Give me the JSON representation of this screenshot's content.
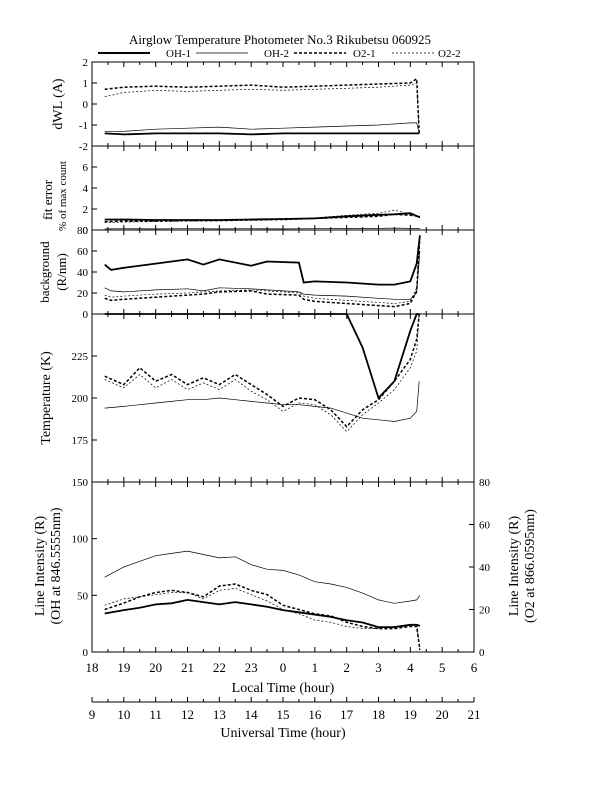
{
  "title": "Airglow Temperature Photometer No.3  Rikubetsu  060925",
  "legend": [
    {
      "label": "OH-1",
      "style": "thick"
    },
    {
      "label": "OH-2",
      "style": "thin"
    },
    {
      "label": "O2-1",
      "style": "thickdash"
    },
    {
      "label": "O2-2",
      "style": "thindash"
    }
  ],
  "x_axis_local": {
    "label": "Local Time (hour)",
    "ticks": [
      "18",
      "19",
      "20",
      "21",
      "22",
      "23",
      "0",
      "1",
      "2",
      "3",
      "4",
      "5",
      "6"
    ]
  },
  "x_axis_ut": {
    "label": "Universal Time (hour)",
    "ticks": [
      "9",
      "10",
      "11",
      "12",
      "13",
      "14",
      "15",
      "16",
      "17",
      "18",
      "19",
      "20",
      "21"
    ]
  },
  "chart_data": [
    {
      "type": "line",
      "panel": "dwl",
      "ylabel": "dWL (A)",
      "ylim": [
        -2,
        2
      ],
      "yticks": [
        "-2",
        "-1",
        "0",
        "1",
        "2"
      ],
      "x_ut": [
        9.4,
        10,
        11,
        12,
        13,
        14,
        15,
        16,
        17,
        18,
        19,
        19.2,
        19.28
      ],
      "series": [
        {
          "name": "OH-1",
          "values": [
            -1.4,
            -1.45,
            -1.4,
            -1.4,
            -1.4,
            -1.45,
            -1.4,
            -1.4,
            -1.4,
            -1.4,
            -1.4,
            -1.4,
            -1.4
          ]
        },
        {
          "name": "OH-2",
          "values": [
            -1.3,
            -1.3,
            -1.2,
            -1.15,
            -1.1,
            -1.2,
            -1.15,
            -1.1,
            -1.05,
            -1.0,
            -0.9,
            -0.9,
            -1.4
          ]
        },
        {
          "name": "O2-1",
          "values": [
            0.7,
            0.8,
            0.85,
            0.8,
            0.85,
            0.9,
            0.8,
            0.85,
            0.9,
            0.95,
            1.0,
            1.2,
            -1.4
          ]
        },
        {
          "name": "O2-2",
          "values": [
            0.35,
            0.55,
            0.65,
            0.6,
            0.65,
            0.7,
            0.65,
            0.7,
            0.75,
            0.8,
            0.9,
            1.0,
            -1.4
          ]
        }
      ]
    },
    {
      "type": "line",
      "panel": "fit",
      "ylabel": "fit error",
      "ylabel2": "% of max count",
      "ylim": [
        0,
        8
      ],
      "yticks": [
        "0",
        "2",
        "4",
        "6"
      ],
      "x_ut": [
        9.4,
        10,
        11,
        12,
        13,
        14,
        15,
        16,
        17,
        18,
        18.5,
        19,
        19.3
      ],
      "series": [
        {
          "name": "OH-1",
          "values": [
            1.0,
            1.0,
            0.95,
            0.95,
            0.95,
            1.0,
            1.05,
            1.1,
            1.3,
            1.45,
            1.5,
            1.6,
            1.2
          ]
        },
        {
          "name": "OH-2",
          "values": [
            0.1,
            0.12,
            0.1,
            0.12,
            0.1,
            0.12,
            0.1,
            0.12,
            0.15,
            0.15,
            0.18,
            0.15,
            0.15
          ]
        },
        {
          "name": "O2-1",
          "values": [
            0.8,
            0.85,
            0.85,
            0.9,
            0.9,
            0.95,
            1.0,
            1.1,
            1.2,
            1.3,
            1.5,
            1.4,
            1.3
          ]
        },
        {
          "name": "O2-2",
          "values": [
            0.7,
            0.75,
            0.8,
            0.85,
            0.9,
            0.95,
            1.0,
            1.15,
            1.4,
            1.6,
            1.9,
            1.5,
            1.3
          ]
        }
      ]
    },
    {
      "type": "line",
      "panel": "bg",
      "ylabel": "background",
      "ylabel2": "(R/nm)",
      "ylim": [
        0,
        80
      ],
      "yticks": [
        "0",
        "20",
        "40",
        "60",
        "80"
      ],
      "x_ut": [
        9.4,
        9.6,
        10,
        11,
        12,
        12.5,
        13,
        14,
        14.5,
        15.5,
        15.65,
        16,
        17,
        18,
        18.5,
        19,
        19.2,
        19.3
      ],
      "series": [
        {
          "name": "OH-1",
          "values": [
            47,
            42,
            44,
            48,
            52,
            47,
            52,
            46,
            50,
            49,
            30,
            31,
            30,
            28,
            28,
            31,
            48,
            75
          ]
        },
        {
          "name": "OH-2",
          "values": [
            25,
            22,
            21,
            23,
            24,
            22,
            25,
            24,
            23,
            21,
            19,
            18,
            17,
            15,
            14,
            14,
            20,
            60
          ]
        },
        {
          "name": "O2-1",
          "values": [
            15,
            13,
            14,
            16,
            18,
            19,
            21,
            22,
            19,
            18,
            14,
            12,
            10,
            8,
            7,
            10,
            22,
            75
          ]
        },
        {
          "name": "O2-2",
          "values": [
            18,
            16,
            17,
            19,
            20,
            21,
            22,
            23,
            22,
            20,
            17,
            15,
            13,
            11,
            10,
            12,
            25,
            75
          ]
        }
      ]
    },
    {
      "type": "line",
      "panel": "temp",
      "ylabel": "Temperature (K)",
      "ylim": [
        150,
        250
      ],
      "yticks": [
        "175",
        "200",
        "225"
      ],
      "x_ut": [
        9.4,
        10,
        10.5,
        11,
        11.5,
        12,
        12.5,
        13,
        13.5,
        14,
        14.5,
        15,
        15.5,
        16,
        16.5,
        17,
        17.5,
        18,
        18.5,
        19,
        19.2,
        19.28
      ],
      "series": [
        {
          "name": "OH-1",
          "values": [
            250,
            250,
            250,
            250,
            250,
            250,
            250,
            250,
            250,
            250,
            250,
            250,
            250,
            250,
            250,
            250,
            230,
            200,
            210,
            240,
            250,
            250
          ]
        },
        {
          "name": "OH-2",
          "values": [
            194,
            195,
            196,
            197,
            198,
            199,
            199,
            200,
            199,
            198,
            197,
            196,
            196,
            195,
            194,
            191,
            188,
            187,
            186,
            188,
            192,
            210
          ]
        },
        {
          "name": "O2-1",
          "values": [
            213,
            208,
            218,
            210,
            214,
            208,
            212,
            208,
            214,
            208,
            202,
            195,
            200,
            199,
            193,
            183,
            193,
            199,
            210,
            223,
            235,
            250
          ]
        },
        {
          "name": "O2-2",
          "values": [
            211,
            206,
            214,
            206,
            211,
            205,
            209,
            205,
            211,
            204,
            199,
            192,
            197,
            196,
            190,
            180,
            190,
            197,
            205,
            218,
            228,
            250
          ]
        }
      ]
    },
    {
      "type": "line",
      "panel": "int",
      "ylabel": "Line Intensity (R)",
      "ylabel2": "(OH at 846.5555nm)",
      "ylim": [
        0,
        150
      ],
      "yticks": [
        "0",
        "50",
        "100",
        "150"
      ],
      "y2label": "Line Intensity (R)",
      "y2label2": "(O2 at 866.0595nm)",
      "y2lim": [
        0,
        80
      ],
      "y2ticks": [
        "0",
        "20",
        "40",
        "60",
        "80"
      ],
      "x_ut": [
        9.4,
        10,
        10.5,
        11,
        11.5,
        12,
        12.5,
        13,
        13.5,
        14,
        14.5,
        15,
        15.5,
        16,
        16.5,
        17,
        17.5,
        18,
        18.5,
        19,
        19.2,
        19.3
      ],
      "series": [
        {
          "name": "OH-1",
          "axis": "left",
          "values": [
            34,
            37,
            39,
            42,
            43,
            46,
            44,
            42,
            44,
            42,
            40,
            37,
            35,
            33,
            31,
            28,
            26,
            22,
            22,
            24,
            24,
            23
          ]
        },
        {
          "name": "OH-2",
          "axis": "left",
          "values": [
            66,
            75,
            80,
            85,
            87,
            89,
            86,
            83,
            84,
            77,
            73,
            72,
            68,
            62,
            60,
            57,
            52,
            46,
            43,
            45,
            46,
            50
          ]
        },
        {
          "name": "O2-1",
          "axis": "right",
          "values": [
            20,
            23,
            26,
            28,
            29,
            28,
            26,
            31,
            32,
            29,
            27,
            22,
            20,
            18,
            17,
            14,
            12,
            11,
            11,
            12,
            12,
            1
          ]
        },
        {
          "name": "O2-2",
          "axis": "right",
          "values": [
            22,
            25,
            26,
            27,
            28,
            28,
            25,
            29,
            30,
            27,
            24,
            20,
            18,
            15,
            14,
            12,
            11,
            11,
            12,
            13,
            13,
            1
          ]
        }
      ]
    }
  ]
}
